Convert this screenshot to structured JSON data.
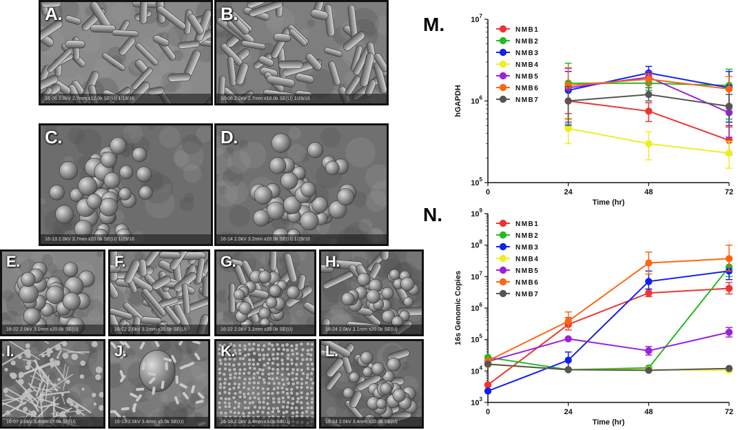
{
  "panels": [
    {
      "label": "A.",
      "caption": "16-06 2.0kV 2.7mm x12.0k SE(U) 1/19/16",
      "scale": "4.00um",
      "kind": "rods",
      "tone": "#8a8a8a"
    },
    {
      "label": "B.",
      "caption": "16-06 2.0kV 2.7mm x10.0k SE(U) 1/29/16",
      "scale": "5.00um",
      "kind": "rods",
      "tone": "#7e7e7e"
    },
    {
      "label": "C.",
      "caption": "16-13 2.0kV 3.7mm x20.0k SE(U) 1/29/16",
      "scale": "2.00um",
      "kind": "cocci",
      "tone": "#6d6d6d"
    },
    {
      "label": "D.",
      "caption": "16-14 2.0kV 3.2mm x20.0k SE(U) 1/29/16",
      "scale": "2.00um",
      "kind": "cocci",
      "tone": "#707070"
    },
    {
      "label": "E.",
      "caption": "16-22 2.0kV 3.1mm x20.0k SE(U)",
      "scale": "",
      "kind": "cocci",
      "tone": "#858585"
    },
    {
      "label": "F.",
      "caption": "16-22 2.0kV 3.1mm x20.0k SE(U)",
      "scale": "",
      "kind": "rods",
      "tone": "#8b8b8b"
    },
    {
      "label": "G.",
      "caption": "16-22 2.0kV 3.1mm x20.0k SE(U)",
      "scale": "",
      "kind": "mixed",
      "tone": "#767676"
    },
    {
      "label": "H.",
      "caption": "16-24 2.0kV 3.1mm x20.0k SE(U)",
      "scale": "",
      "kind": "mixed",
      "tone": "#6a6a6a"
    },
    {
      "label": "I.",
      "caption": "16-07 2.0kV 3.4mm x5.0k SE(U)",
      "scale": "5.00um",
      "kind": "fibers",
      "tone": "#707070"
    },
    {
      "label": "J.",
      "caption": "16-13 2.0kV 3.4mm x5.0k SE(U)",
      "scale": "10.0um",
      "kind": "blob",
      "tone": "#7a7a7a"
    },
    {
      "label": "K.",
      "caption": "16-13 2.0kV 3.4mm x3.0k SE(U)",
      "scale": "10.0um",
      "kind": "dense",
      "tone": "#6e6e6e"
    },
    {
      "label": "L.",
      "caption": "16-24 2.0kV 3.4mm x20.0k SE(U)",
      "scale": "2.00um",
      "kind": "mixed",
      "tone": "#6c6c6c"
    }
  ],
  "chart_data": [
    {
      "panel_label": "M.",
      "type": "line",
      "xlabel": "Time (hr)",
      "ylabel": "hGAPDH",
      "yscale": "log",
      "ylim": [
        100000,
        10000000
      ],
      "x": [
        0,
        24,
        48,
        72
      ],
      "xticks": [
        "0",
        "24",
        "48",
        "72"
      ],
      "yticks": [
        {
          "base": "10",
          "exp": "5"
        },
        {
          "base": "10",
          "exp": "6"
        },
        {
          "base": "10",
          "exp": "7"
        }
      ],
      "legend_position": "top-left",
      "series": [
        {
          "name": "NMB1",
          "color": "#ee3333",
          "points": [
            [
              24,
              1000000,
              1350000,
              700000
            ],
            [
              48,
              750000,
              950000,
              560000
            ],
            [
              72,
              330000,
              480000,
              220000
            ]
          ]
        },
        {
          "name": "NMB2",
          "color": "#22bb22",
          "points": [
            [
              24,
              1650000,
              2900000,
              520000
            ],
            [
              48,
              1650000,
              1950000,
              1350000
            ],
            [
              72,
              1550000,
              2450000,
              600000
            ]
          ]
        },
        {
          "name": "NMB3",
          "color": "#1122ee",
          "points": [
            [
              24,
              1350000,
              2300000,
              600000
            ],
            [
              48,
              2200000,
              2650000,
              1800000
            ],
            [
              72,
              1450000,
              2300000,
              550000
            ]
          ]
        },
        {
          "name": "NMB4",
          "color": "#eeee22",
          "points": [
            [
              24,
              460000,
              620000,
              300000
            ],
            [
              48,
              300000,
              420000,
              190000
            ],
            [
              72,
              230000,
              320000,
              150000
            ]
          ]
        },
        {
          "name": "NMB5",
          "color": "#9922dd",
          "points": [
            [
              24,
              1450000,
              2500000,
              550000
            ],
            [
              48,
              1950000,
              2300000,
              1600000
            ],
            [
              72,
              720000,
              1350000,
              360000
            ]
          ]
        },
        {
          "name": "NMB6",
          "color": "#ff6611",
          "points": [
            [
              24,
              1550000,
              2550000,
              600000
            ],
            [
              48,
              1850000,
              2150000,
              1600000
            ],
            [
              72,
              1400000,
              2000000,
              800000
            ]
          ]
        },
        {
          "name": "NMB7",
          "color": "#555555",
          "points": [
            [
              24,
              1000000,
              1500000,
              500000
            ],
            [
              48,
              1200000,
              1450000,
              1000000
            ],
            [
              72,
              860000,
              1200000,
              500000
            ]
          ]
        }
      ]
    },
    {
      "panel_label": "N.",
      "type": "line",
      "xlabel": "Time (hr)",
      "ylabel": "16s Genomic Copies",
      "yscale": "log",
      "ylim": [
        1000,
        1000000000
      ],
      "x": [
        0,
        24,
        48,
        72
      ],
      "xticks": [
        "0",
        "24",
        "48",
        "72"
      ],
      "yticks": [
        {
          "base": "10",
          "exp": "3"
        },
        {
          "base": "10",
          "exp": "4"
        },
        {
          "base": "10",
          "exp": "5"
        },
        {
          "base": "10",
          "exp": "6"
        },
        {
          "base": "10",
          "exp": "7"
        },
        {
          "base": "10",
          "exp": "8"
        },
        {
          "base": "10",
          "exp": "9"
        }
      ],
      "legend_position": "top-left",
      "series": [
        {
          "name": "NMB1",
          "color": "#ee3333",
          "points": [
            [
              0,
              3600,
              3600,
              3600
            ],
            [
              24,
              300000,
              500000,
              200000
            ],
            [
              48,
              3000000,
              4000000,
              2300000
            ],
            [
              72,
              4200000,
              6500000,
              2800000
            ]
          ]
        },
        {
          "name": "NMB2",
          "color": "#22bb22",
          "points": [
            [
              0,
              27000,
              27000,
              27000
            ],
            [
              24,
              11000,
              11000,
              11000
            ],
            [
              48,
              12500,
              12500,
              12500
            ],
            [
              72,
              20000000,
              40000000,
              10000000
            ]
          ]
        },
        {
          "name": "NMB3",
          "color": "#1122ee",
          "points": [
            [
              0,
              2300,
              2300,
              2300
            ],
            [
              24,
              22000,
              40000,
              12000
            ],
            [
              48,
              7000000,
              15000000,
              4000000
            ],
            [
              72,
              15000000,
              40000000,
              8000000
            ]
          ]
        },
        {
          "name": "NMB4",
          "color": "#eeee22",
          "points": [
            [
              0,
              16000,
              16000,
              16000
            ],
            [
              24,
              11000,
              11000,
              11000
            ],
            [
              48,
              11000,
              11000,
              11000
            ],
            [
              72,
              10500,
              10500,
              10500
            ]
          ]
        },
        {
          "name": "NMB5",
          "color": "#9922dd",
          "points": [
            [
              0,
              20000,
              20000,
              20000
            ],
            [
              24,
              105000,
              105000,
              105000
            ],
            [
              48,
              44000,
              60000,
              32000
            ],
            [
              72,
              170000,
              240000,
              120000
            ]
          ]
        },
        {
          "name": "NMB6",
          "color": "#ff6611",
          "points": [
            [
              0,
              21000,
              21000,
              21000
            ],
            [
              24,
              380000,
              750000,
              200000
            ],
            [
              48,
              27000000,
              60000000,
              12000000
            ],
            [
              72,
              37000000,
              100000000,
              15000000
            ]
          ]
        },
        {
          "name": "NMB7",
          "color": "#555555",
          "points": [
            [
              0,
              16500,
              16500,
              16500
            ],
            [
              24,
              11000,
              11000,
              11000
            ],
            [
              48,
              10500,
              10500,
              10500
            ],
            [
              72,
              12000,
              12000,
              12000
            ]
          ]
        }
      ]
    }
  ]
}
